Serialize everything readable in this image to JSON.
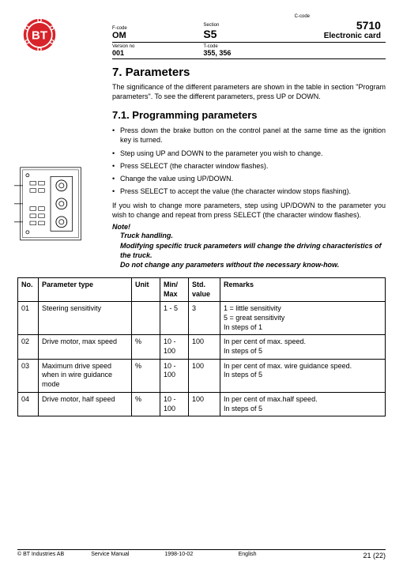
{
  "header": {
    "fcode_label": "F-code",
    "fcode": "OM",
    "section_label": "Section",
    "section": "S5",
    "ccode_label": "C-code",
    "ccode": "5710",
    "card_label": "Electronic card",
    "version_label": "Version no",
    "version": "001",
    "tcode_label": "T-code",
    "tcode": "355, 356"
  },
  "section7": {
    "title": "7. Parameters",
    "intro": "The significance of the different parameters are shown in the table in section \"Program parameters\". To see the different parameters, press UP or DOWN."
  },
  "section71": {
    "title": "7.1. Programming parameters",
    "bullets": [
      "Press down the brake button on the control panel at the same time as the ignition key is turned.",
      "Step using UP and DOWN to the parameter you wish to change.",
      "Press SELECT (the character window flashes).",
      "Change the value using UP/DOWN.",
      "Press SELECT to accept the value (the character window stops flashing)."
    ],
    "para": "If you wish to change more parameters, step using UP/DOWN to the parameter you wish to change and repeat from press SELECT (the character window flashes).",
    "note_label": "Note!",
    "note": "Truck handling.\nModifying specific truck parameters will change the driving characteristics of the truck.\nDo not change any parameters without the necessary know-how."
  },
  "table": {
    "columns": [
      "No.",
      "Parameter type",
      "Unit",
      "Min/\nMax",
      "Std. value",
      "Remarks"
    ],
    "rows": [
      [
        "01",
        "Steering sensitivity",
        "",
        "1 - 5",
        "3",
        "1 = little sensitivity\n5 = great sensitivity\nIn steps of 1"
      ],
      [
        "02",
        "Drive motor, max speed",
        "%",
        "10 - 100",
        "100",
        "In per cent of max. speed.\nIn steps of 5"
      ],
      [
        "03",
        "Maximum drive speed when in wire guidance mode",
        "%",
        "10 - 100",
        "100",
        "In per cent of max. wire guidance speed.\nIn steps of 5"
      ],
      [
        "04",
        "Drive motor, half speed",
        "%",
        "10 - 100",
        "100",
        "In per cent of max.half speed.\nIn steps of 5"
      ]
    ]
  },
  "footer": {
    "copyright": "© BT Industries AB",
    "manual": "Service Manual",
    "date": "1998-10-02",
    "lang": "English",
    "page": "21 (22)"
  }
}
